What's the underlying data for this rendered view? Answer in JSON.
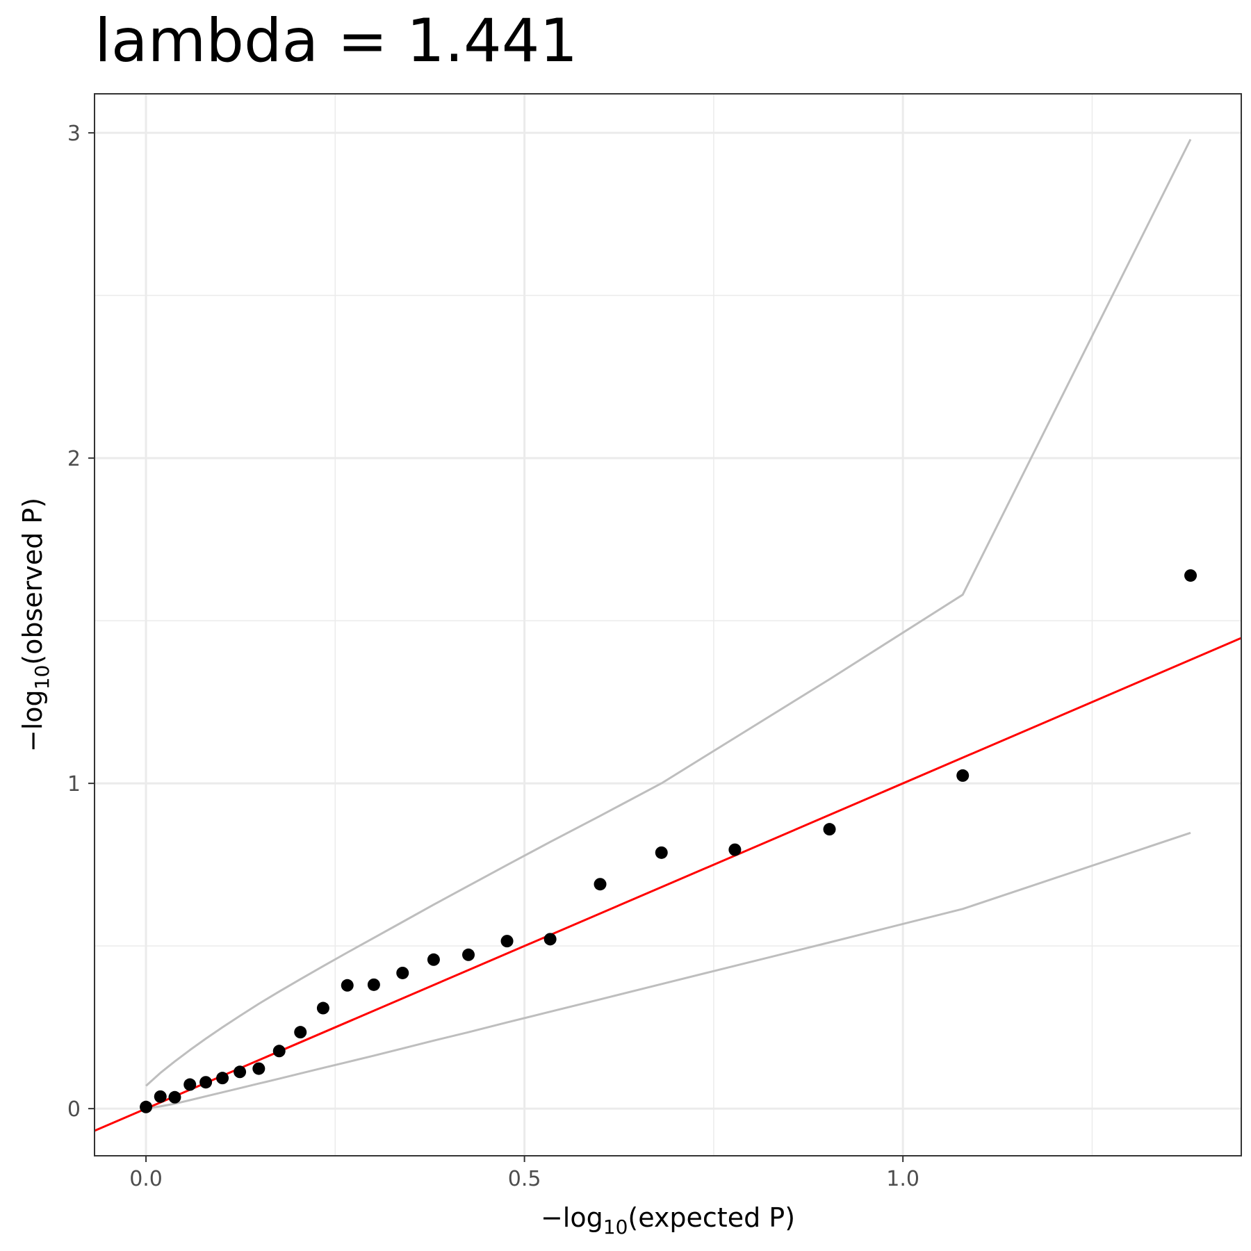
{
  "chart_data": {
    "type": "scatter",
    "title": "lambda = 1.441",
    "xlabel": {
      "prefix": "−log",
      "sub": "10",
      "suffix": "(expected P)"
    },
    "ylabel": {
      "prefix": "−log",
      "sub": "10",
      "suffix": "(observed P)"
    },
    "xlim": [
      -0.068,
      1.447
    ],
    "ylim": [
      -0.145,
      3.12
    ],
    "x_ticks": [
      0.0,
      0.5,
      1.0
    ],
    "x_tick_labels": [
      "0.0",
      "0.5",
      "1.0"
    ],
    "x_minor_ticks": [
      0.25,
      0.75,
      1.25
    ],
    "y_ticks": [
      0,
      1,
      2,
      3
    ],
    "y_tick_labels": [
      "0",
      "1",
      "2",
      "3"
    ],
    "y_minor_ticks": [
      0.5,
      1.5,
      2.5
    ],
    "grid": true,
    "legend": "none",
    "colors": {
      "points": "#000000",
      "reference_line": "#ff0000",
      "confidence_band": "#bebebe",
      "grid": "#ebebeb",
      "panel_border": "#333333"
    },
    "points": {
      "x": [
        0.0,
        0.019,
        0.038,
        0.058,
        0.079,
        0.101,
        0.124,
        0.149,
        0.176,
        0.204,
        0.234,
        0.266,
        0.301,
        0.339,
        0.38,
        0.426,
        0.477,
        0.534,
        0.6,
        0.681,
        0.778,
        0.903,
        1.079,
        1.38
      ],
      "y": [
        0.005,
        0.037,
        0.035,
        0.074,
        0.081,
        0.094,
        0.113,
        0.123,
        0.177,
        0.235,
        0.309,
        0.379,
        0.381,
        0.417,
        0.458,
        0.473,
        0.515,
        0.521,
        0.69,
        0.787,
        0.796,
        0.859,
        1.024,
        1.639
      ]
    },
    "reference_line": {
      "slope": 1,
      "intercept": 0
    },
    "confidence_upper": {
      "x": [
        0.0,
        0.019,
        0.038,
        0.058,
        0.079,
        0.101,
        0.124,
        0.149,
        0.176,
        0.204,
        0.234,
        0.266,
        0.301,
        0.339,
        0.38,
        0.426,
        0.477,
        0.534,
        0.6,
        0.681,
        0.778,
        0.903,
        1.079,
        1.38
      ],
      "y": [
        0.07,
        0.11,
        0.145,
        0.18,
        0.215,
        0.25,
        0.285,
        0.322,
        0.36,
        0.398,
        0.438,
        0.48,
        0.525,
        0.574,
        0.627,
        0.685,
        0.749,
        0.82,
        0.9,
        1.0,
        1.14,
        1.32,
        1.58,
        2.98
      ]
    },
    "confidence_lower": {
      "x": [
        0.0,
        0.019,
        0.038,
        0.058,
        0.079,
        0.101,
        0.124,
        0.149,
        0.176,
        0.204,
        0.234,
        0.266,
        0.301,
        0.339,
        0.38,
        0.426,
        0.477,
        0.534,
        0.6,
        0.681,
        0.778,
        0.903,
        1.079,
        1.38
      ],
      "y": [
        0.0,
        0.007,
        0.015,
        0.026,
        0.038,
        0.05,
        0.063,
        0.077,
        0.092,
        0.108,
        0.125,
        0.143,
        0.163,
        0.185,
        0.209,
        0.235,
        0.265,
        0.298,
        0.336,
        0.383,
        0.439,
        0.511,
        0.614,
        0.848
      ]
    }
  }
}
